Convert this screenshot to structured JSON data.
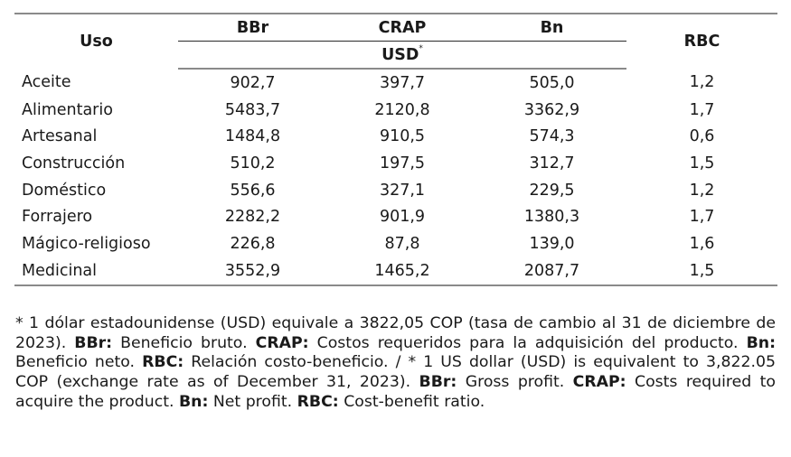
{
  "table": {
    "headers": {
      "uso": "Uso",
      "bbr": "BBr",
      "crap": "CRAP",
      "bn": "Bn",
      "rbc": "RBC",
      "unit": "USD",
      "unit_marker": "*"
    },
    "rows": [
      {
        "uso": "Aceite",
        "bbr": "902,7",
        "crap": "397,7",
        "bn": "505,0",
        "rbc": "1,2"
      },
      {
        "uso": "Alimentario",
        "bbr": "5483,7",
        "crap": "2120,8",
        "bn": "3362,9",
        "rbc": "1,7"
      },
      {
        "uso": "Artesanal",
        "bbr": "1484,8",
        "crap": "910,5",
        "bn": "574,3",
        "rbc": "0,6"
      },
      {
        "uso": "Construcción",
        "bbr": "510,2",
        "crap": "197,5",
        "bn": "312,7",
        "rbc": "1,5"
      },
      {
        "uso": "Doméstico",
        "bbr": "556,6",
        "crap": "327,1",
        "bn": "229,5",
        "rbc": "1,2"
      },
      {
        "uso": "Forrajero",
        "bbr": "2282,2",
        "crap": "901,9",
        "bn": "1380,3",
        "rbc": "1,7"
      },
      {
        "uso": "Mágico-religioso",
        "bbr": "226,8",
        "crap": "87,8",
        "bn": "139,0",
        "rbc": "1,6"
      },
      {
        "uso": "Medicinal",
        "bbr": "3552,9",
        "crap": "1465,2",
        "bn": "2087,7",
        "rbc": "1,5"
      }
    ]
  },
  "footnote": {
    "s1": "* 1 dólar estadounidense (USD) equivale a 3822,05 COP (tasa de cambio al 31 de diciembre de 2023). ",
    "k1": "BBr:",
    "s2": " Beneficio bruto. ",
    "k2": "CRAP:",
    "s3": " Costos requeridos para la adquisición del producto. ",
    "k3": "Bn:",
    "s4": " Beneficio neto. ",
    "k4": "RBC:",
    "s5": " Relación costo-beneficio. / * 1 US dollar (USD) is equivalent to 3,822.05 COP (exchange rate as of December 31, 2023). ",
    "k5": "BBr:",
    "s6": " Gross profit. ",
    "k6": "CRAP:",
    "s7": " Costs required to acquire the product. ",
    "k7": "Bn:",
    "s8": " Net profit. ",
    "k8": "RBC:",
    "s9": " Cost-benefit ratio."
  }
}
